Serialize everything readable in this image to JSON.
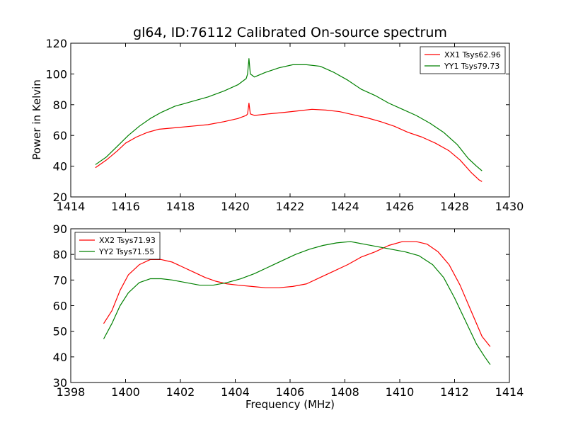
{
  "figure": {
    "title": "gl64, ID:76112 Calibrated On-source spectrum",
    "ylabel": "Power in Kelvin",
    "xlabel": "Frequency (MHz)"
  },
  "colors": {
    "red": "#ff0000",
    "green": "#008000",
    "axis": "#000000",
    "background": "#ffffff"
  },
  "chart_data": [
    {
      "type": "line",
      "xlim": [
        1414,
        1430
      ],
      "ylim": [
        20,
        120
      ],
      "xticks": [
        1414,
        1416,
        1418,
        1420,
        1422,
        1424,
        1426,
        1428,
        1430
      ],
      "yticks": [
        20,
        40,
        60,
        80,
        100,
        120
      ],
      "legend_position": "top-right",
      "series": [
        {
          "name": "XX1 Tsys62.96",
          "color": "#ff0000",
          "points": [
            [
              1414.9,
              39
            ],
            [
              1415.3,
              44
            ],
            [
              1415.7,
              50
            ],
            [
              1416.0,
              55
            ],
            [
              1416.4,
              59
            ],
            [
              1416.8,
              62
            ],
            [
              1417.2,
              64
            ],
            [
              1417.8,
              65
            ],
            [
              1418.4,
              66
            ],
            [
              1419.0,
              67
            ],
            [
              1419.6,
              69
            ],
            [
              1420.1,
              71
            ],
            [
              1420.4,
              73
            ],
            [
              1420.45,
              74
            ],
            [
              1420.5,
              81
            ],
            [
              1420.55,
              74
            ],
            [
              1420.7,
              73
            ],
            [
              1421.2,
              74
            ],
            [
              1421.8,
              75
            ],
            [
              1422.3,
              76
            ],
            [
              1422.8,
              77
            ],
            [
              1423.3,
              76.5
            ],
            [
              1423.8,
              75.5
            ],
            [
              1424.3,
              73.5
            ],
            [
              1424.8,
              71.5
            ],
            [
              1425.3,
              69
            ],
            [
              1425.8,
              66
            ],
            [
              1426.3,
              62
            ],
            [
              1426.8,
              59
            ],
            [
              1427.3,
              55
            ],
            [
              1427.8,
              50
            ],
            [
              1428.2,
              44
            ],
            [
              1428.6,
              36
            ],
            [
              1428.9,
              31
            ],
            [
              1429.0,
              30
            ]
          ]
        },
        {
          "name": "YY1 Tsys79.73",
          "color": "#008000",
          "points": [
            [
              1414.9,
              41
            ],
            [
              1415.3,
              46
            ],
            [
              1415.7,
              53
            ],
            [
              1416.1,
              60
            ],
            [
              1416.5,
              66
            ],
            [
              1416.9,
              71
            ],
            [
              1417.3,
              75
            ],
            [
              1417.8,
              79
            ],
            [
              1418.4,
              82
            ],
            [
              1419.0,
              85
            ],
            [
              1419.6,
              89
            ],
            [
              1420.1,
              93
            ],
            [
              1420.4,
              97
            ],
            [
              1420.45,
              100
            ],
            [
              1420.5,
              110
            ],
            [
              1420.55,
              100
            ],
            [
              1420.7,
              98
            ],
            [
              1421.1,
              101
            ],
            [
              1421.6,
              104
            ],
            [
              1422.1,
              106
            ],
            [
              1422.6,
              106
            ],
            [
              1423.1,
              105
            ],
            [
              1423.6,
              101
            ],
            [
              1424.1,
              96
            ],
            [
              1424.6,
              90
            ],
            [
              1425.1,
              86
            ],
            [
              1425.6,
              81
            ],
            [
              1426.1,
              77
            ],
            [
              1426.6,
              73
            ],
            [
              1427.1,
              68
            ],
            [
              1427.6,
              62
            ],
            [
              1428.1,
              54
            ],
            [
              1428.5,
              45
            ],
            [
              1428.8,
              40
            ],
            [
              1429.0,
              37
            ]
          ]
        }
      ]
    },
    {
      "type": "line",
      "xlim": [
        1398,
        1414
      ],
      "ylim": [
        30,
        90
      ],
      "xticks": [
        1398,
        1400,
        1402,
        1404,
        1406,
        1408,
        1410,
        1412,
        1414
      ],
      "yticks": [
        30,
        40,
        50,
        60,
        70,
        80,
        90
      ],
      "xlabel": "Frequency (MHz)",
      "legend_position": "top-left",
      "series": [
        {
          "name": "XX2 Tsys71.93",
          "color": "#ff0000",
          "points": [
            [
              1399.2,
              53
            ],
            [
              1399.5,
              58
            ],
            [
              1399.8,
              66
            ],
            [
              1400.1,
              72
            ],
            [
              1400.5,
              76
            ],
            [
              1400.9,
              78
            ],
            [
              1401.3,
              78
            ],
            [
              1401.7,
              77
            ],
            [
              1402.1,
              75
            ],
            [
              1402.5,
              73
            ],
            [
              1402.9,
              71
            ],
            [
              1403.3,
              69.5
            ],
            [
              1403.7,
              68.5
            ],
            [
              1404.1,
              68
            ],
            [
              1404.6,
              67.5
            ],
            [
              1405.1,
              67
            ],
            [
              1405.6,
              67
            ],
            [
              1406.1,
              67.5
            ],
            [
              1406.6,
              68.5
            ],
            [
              1407.1,
              71
            ],
            [
              1407.6,
              73.5
            ],
            [
              1408.1,
              76
            ],
            [
              1408.6,
              79
            ],
            [
              1409.1,
              81
            ],
            [
              1409.6,
              83.5
            ],
            [
              1410.1,
              85
            ],
            [
              1410.6,
              85
            ],
            [
              1411.0,
              84
            ],
            [
              1411.4,
              81
            ],
            [
              1411.8,
              76
            ],
            [
              1412.2,
              68
            ],
            [
              1412.6,
              58
            ],
            [
              1413.0,
              48
            ],
            [
              1413.3,
              44
            ]
          ]
        },
        {
          "name": "YY2 Tsys71.55",
          "color": "#008000",
          "points": [
            [
              1399.2,
              47
            ],
            [
              1399.5,
              53
            ],
            [
              1399.8,
              60
            ],
            [
              1400.1,
              65
            ],
            [
              1400.5,
              69
            ],
            [
              1400.9,
              70.5
            ],
            [
              1401.3,
              70.5
            ],
            [
              1401.7,
              70
            ],
            [
              1402.2,
              69
            ],
            [
              1402.7,
              68
            ],
            [
              1403.2,
              68
            ],
            [
              1403.7,
              69
            ],
            [
              1404.2,
              70.5
            ],
            [
              1404.7,
              72.5
            ],
            [
              1405.2,
              75
            ],
            [
              1405.7,
              77.5
            ],
            [
              1406.2,
              80
            ],
            [
              1406.7,
              82
            ],
            [
              1407.2,
              83.5
            ],
            [
              1407.7,
              84.5
            ],
            [
              1408.2,
              85
            ],
            [
              1408.7,
              84
            ],
            [
              1409.2,
              83
            ],
            [
              1409.7,
              82
            ],
            [
              1410.2,
              81
            ],
            [
              1410.7,
              79.5
            ],
            [
              1411.2,
              76
            ],
            [
              1411.6,
              71
            ],
            [
              1412.0,
              63
            ],
            [
              1412.4,
              54
            ],
            [
              1412.8,
              45
            ],
            [
              1413.1,
              40
            ],
            [
              1413.3,
              37
            ]
          ]
        }
      ]
    }
  ]
}
